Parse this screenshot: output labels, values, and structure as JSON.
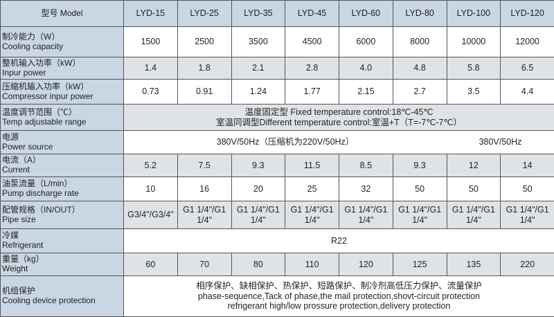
{
  "header": {
    "label": "型号 Model",
    "models": [
      "LYD-15",
      "LYD-25",
      "LYD-35",
      "LYD-45",
      "LYD-60",
      "LYD-80",
      "LYD-100",
      "LYD-120"
    ]
  },
  "rows": [
    {
      "label_cn": "制冷能力（W）",
      "label_en": "Cooling capacity",
      "values": [
        "1500",
        "2500",
        "3500",
        "4500",
        "6000",
        "8000",
        "10000",
        "12000"
      ]
    },
    {
      "label_cn": "整机输入功率（kW）",
      "label_en": "Inpur power",
      "values": [
        "1.4",
        "1.8",
        "2.1",
        "2.8",
        "4.0",
        "4.8",
        "5.8",
        "6.5"
      ]
    },
    {
      "label_cn": "压缩机输入功率（kW）",
      "label_en": "Compressor inpur power",
      "values": [
        "0.73",
        "0.91",
        "1.24",
        "1.77",
        "2.15",
        "2.7",
        "3.5",
        "4.4"
      ]
    },
    {
      "label_cn": "温度调节范围（℃）",
      "label_en": "Temp adjustable range",
      "lines": [
        "温度固定型 Fixed temperature control:18℃-45℃",
        "室温同调型Different temperature control:室温+T（T=-7℃-7℃）"
      ]
    },
    {
      "label_cn": "电源",
      "label_en": "Power source",
      "groups": [
        "380V/50Hz（压缩机为220V/50Hz）",
        "380V/50Hz"
      ]
    },
    {
      "label_cn": "电流（A）",
      "label_en": "Current",
      "values": [
        "5.2",
        "7.5",
        "9.3",
        "11.5",
        "8.5",
        "9.3",
        "12",
        "14"
      ]
    },
    {
      "label_cn": "油泵流量（L/min）",
      "label_en": "Pump discharge rate",
      "values": [
        "10",
        "16",
        "20",
        "25",
        "32",
        "50",
        "50",
        "50"
      ]
    },
    {
      "label_cn": "配管规格（IN/OUT）",
      "label_en": "Pipe size",
      "values": [
        "G3/4\"/G3/4\"",
        "G1 1/4\"/G1 1/4\"",
        "G1 1/4\"/G1 1/4\"",
        "G1 1/4\"/G1 1/4\"",
        "G1 1/4\"/G1 1/4\"",
        "G1 1/4\"/G1 1/4\"",
        "G1 1/4\"/G1 1/4\"",
        "G1 1/4\"/G1 1/4\""
      ]
    },
    {
      "label_cn": "冷媒",
      "label_en": "Refrigerant",
      "lines": [
        "R22"
      ]
    },
    {
      "label_cn": "重量（kg）",
      "label_en": "Weight",
      "values": [
        "60",
        "70",
        "80",
        "110",
        "120",
        "125",
        "135",
        "220"
      ]
    },
    {
      "label_cn": "机组保护",
      "label_en": "Cooling device protection",
      "lines": [
        "相序保护、缺相保护、热保护、短路保护、制冷剂高低压力保护、流量保护",
        "phase-sequence,Tack of phase,the mail protection,shovt-circuit protection",
        "refrigerant high/low prossure protection,delivery protection"
      ]
    }
  ]
}
